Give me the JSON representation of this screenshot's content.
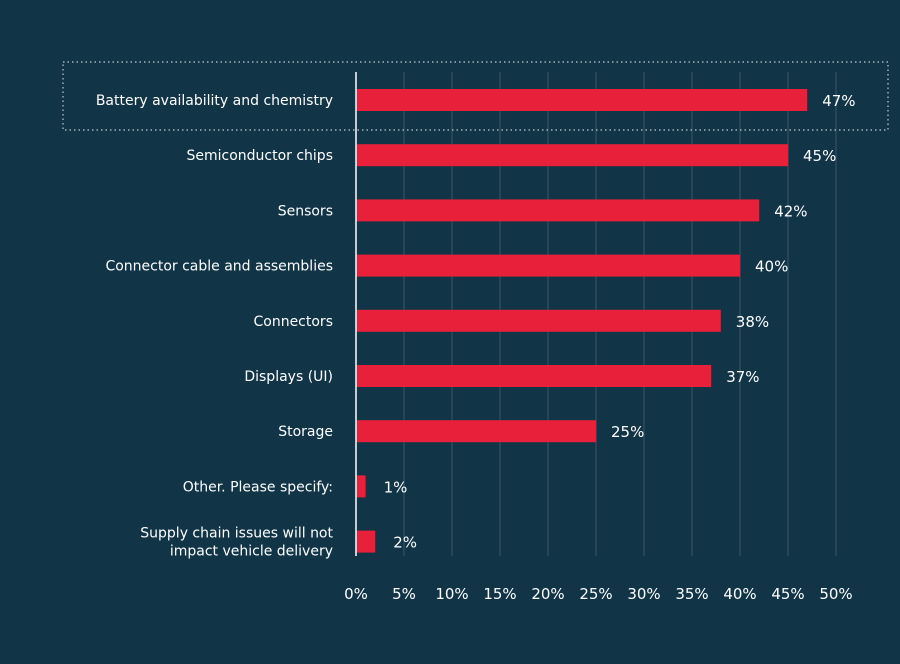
{
  "chart_data": {
    "type": "bar",
    "orientation": "horizontal",
    "categories": [
      "Battery availability and chemistry",
      "Semiconductor chips",
      "Sensors",
      "Connector cable and assemblies",
      "Connectors",
      "Displays (UI)",
      "Storage",
      "Other. Please specify:",
      "Supply chain issues will not impact vehicle delivery"
    ],
    "category_lines": [
      [
        "Battery availability and chemistry"
      ],
      [
        "Semiconductor chips"
      ],
      [
        "Sensors"
      ],
      [
        "Connector cable and assemblies"
      ],
      [
        "Connectors"
      ],
      [
        "Displays (UI)"
      ],
      [
        "Storage"
      ],
      [
        "Other. Please specify:"
      ],
      [
        "Supply chain issues will not",
        "impact vehicle delivery"
      ]
    ],
    "values": [
      47,
      45,
      42,
      40,
      38,
      37,
      25,
      1,
      2
    ],
    "data_labels": [
      "47%",
      "45%",
      "42%",
      "40%",
      "38%",
      "37%",
      "25%",
      "1%",
      "2%"
    ],
    "xlim": [
      0,
      50
    ],
    "x_ticks": [
      0,
      5,
      10,
      15,
      20,
      25,
      30,
      35,
      40,
      45,
      50
    ],
    "x_tick_labels": [
      "0%",
      "5%",
      "10%",
      "15%",
      "20%",
      "25%",
      "30%",
      "35%",
      "40%",
      "45%",
      "50%"
    ],
    "grid": true,
    "highlighted_category": "Battery availability and chemistry",
    "colors": {
      "bar": "#e8203a",
      "background": "#113447",
      "text": "#ffffff"
    }
  }
}
